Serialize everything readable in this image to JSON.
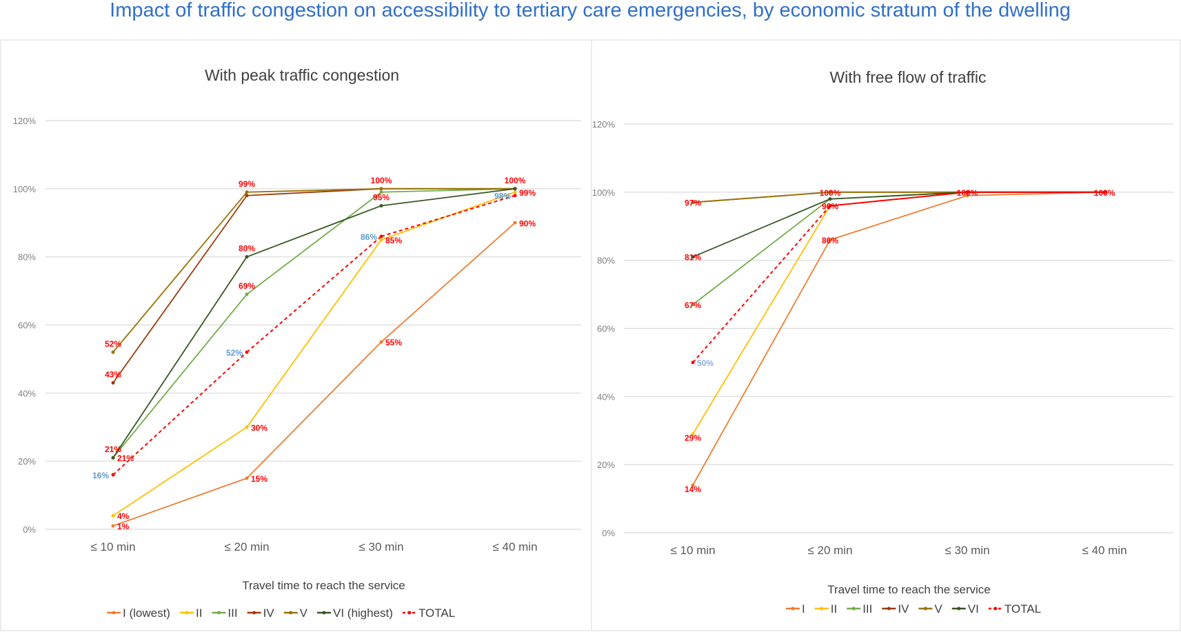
{
  "title": "Impact of traffic congestion on accessibility to tertiary care emergencies, by economic stratum of the dwelling",
  "colors": {
    "title": "#2f6fc9",
    "label_red": "#ff0000",
    "label_blue": "#5b9bd5",
    "grid": "#d9d9d9"
  },
  "chart_data": [
    {
      "type": "line",
      "title": "With peak traffic congestion",
      "xlabel": "Travel time to reach the service",
      "ylabel": "",
      "categories": [
        "≤ 10 min",
        "≤ 20 min",
        "≤ 30 min",
        "≤ 40 min"
      ],
      "ylim": [
        0,
        120
      ],
      "yticks": [
        "0%",
        "20%",
        "40%",
        "60%",
        "80%",
        "100%",
        "120%"
      ],
      "grid": true,
      "legend_position": "bottom",
      "series": [
        {
          "name": "I (lowest)",
          "color": "#ed7d31",
          "values": [
            1,
            15,
            55,
            90
          ],
          "labels": [
            true,
            true,
            true,
            true
          ],
          "label_color": "#ff0000"
        },
        {
          "name": "II",
          "color": "#ffc000",
          "values": [
            4,
            30,
            85,
            99
          ],
          "labels": [
            true,
            true,
            true,
            true
          ],
          "label_color": "#ff0000"
        },
        {
          "name": "III",
          "color": "#70ad47",
          "values": [
            21,
            69,
            99,
            100
          ],
          "labels": [
            true,
            true,
            false,
            false
          ],
          "label_color": "#ff0000"
        },
        {
          "name": "IV",
          "color": "#9e3a0e",
          "values": [
            43,
            98,
            100,
            100
          ],
          "labels": [
            true,
            false,
            false,
            false
          ],
          "label_color": "#ff0000"
        },
        {
          "name": "V",
          "color": "#997300",
          "values": [
            52,
            99,
            100,
            100
          ],
          "labels": [
            true,
            true,
            true,
            true
          ],
          "label_color": "#ff0000"
        },
        {
          "name": "VI (highest)",
          "color": "#375623",
          "values": [
            21,
            80,
            95,
            100
          ],
          "labels": [
            true,
            true,
            true,
            false
          ],
          "label_color": "#ff0000"
        },
        {
          "name": "TOTAL",
          "color": "#ff0000",
          "dashed": true,
          "values": [
            16,
            52,
            86,
            98
          ],
          "labels": [
            true,
            true,
            true,
            true
          ],
          "label_color": "#5b9bd5"
        }
      ]
    },
    {
      "type": "line",
      "title": "With free flow of traffic",
      "xlabel": "Travel time to reach the service",
      "ylabel": "",
      "categories": [
        "≤ 10 min",
        "≤ 20 min",
        "≤ 30 min",
        "≤ 40 min"
      ],
      "ylim": [
        0,
        120
      ],
      "yticks": [
        "0%",
        "20%",
        "40%",
        "60%",
        "80%",
        "100%",
        "120%"
      ],
      "grid": true,
      "legend_position": "bottom",
      "series": [
        {
          "name": "I",
          "color": "#ed7d31",
          "values": [
            14,
            86,
            99,
            100
          ],
          "labels": [
            true,
            true,
            false,
            false
          ],
          "label_color": "#ff0000"
        },
        {
          "name": "II",
          "color": "#ffc000",
          "values": [
            29,
            96,
            100,
            100
          ],
          "labels": [
            true,
            false,
            false,
            false
          ],
          "label_color": "#ff0000"
        },
        {
          "name": "III",
          "color": "#70ad47",
          "values": [
            67,
            98,
            100,
            100
          ],
          "labels": [
            true,
            false,
            false,
            false
          ],
          "label_color": "#ff0000"
        },
        {
          "name": "IV",
          "color": "#9e3a0e",
          "values": [
            97,
            100,
            100,
            100
          ],
          "labels": [
            false,
            false,
            false,
            false
          ],
          "label_color": "#ff0000"
        },
        {
          "name": "V",
          "color": "#997300",
          "values": [
            97,
            100,
            100,
            100
          ],
          "labels": [
            true,
            true,
            false,
            false
          ],
          "label_color": "#ff0000"
        },
        {
          "name": "VI",
          "color": "#375623",
          "values": [
            81,
            98,
            100,
            100
          ],
          "labels": [
            true,
            false,
            false,
            false
          ],
          "label_color": "#ff0000"
        },
        {
          "name": "TOTAL",
          "color": "#ff0000",
          "dashed_first_segment": true,
          "values": [
            50,
            96,
            100,
            100
          ],
          "labels": [
            true,
            true,
            true,
            true
          ],
          "label_color": "#ff0000",
          "first_label_color": "#8faadc"
        }
      ]
    }
  ]
}
